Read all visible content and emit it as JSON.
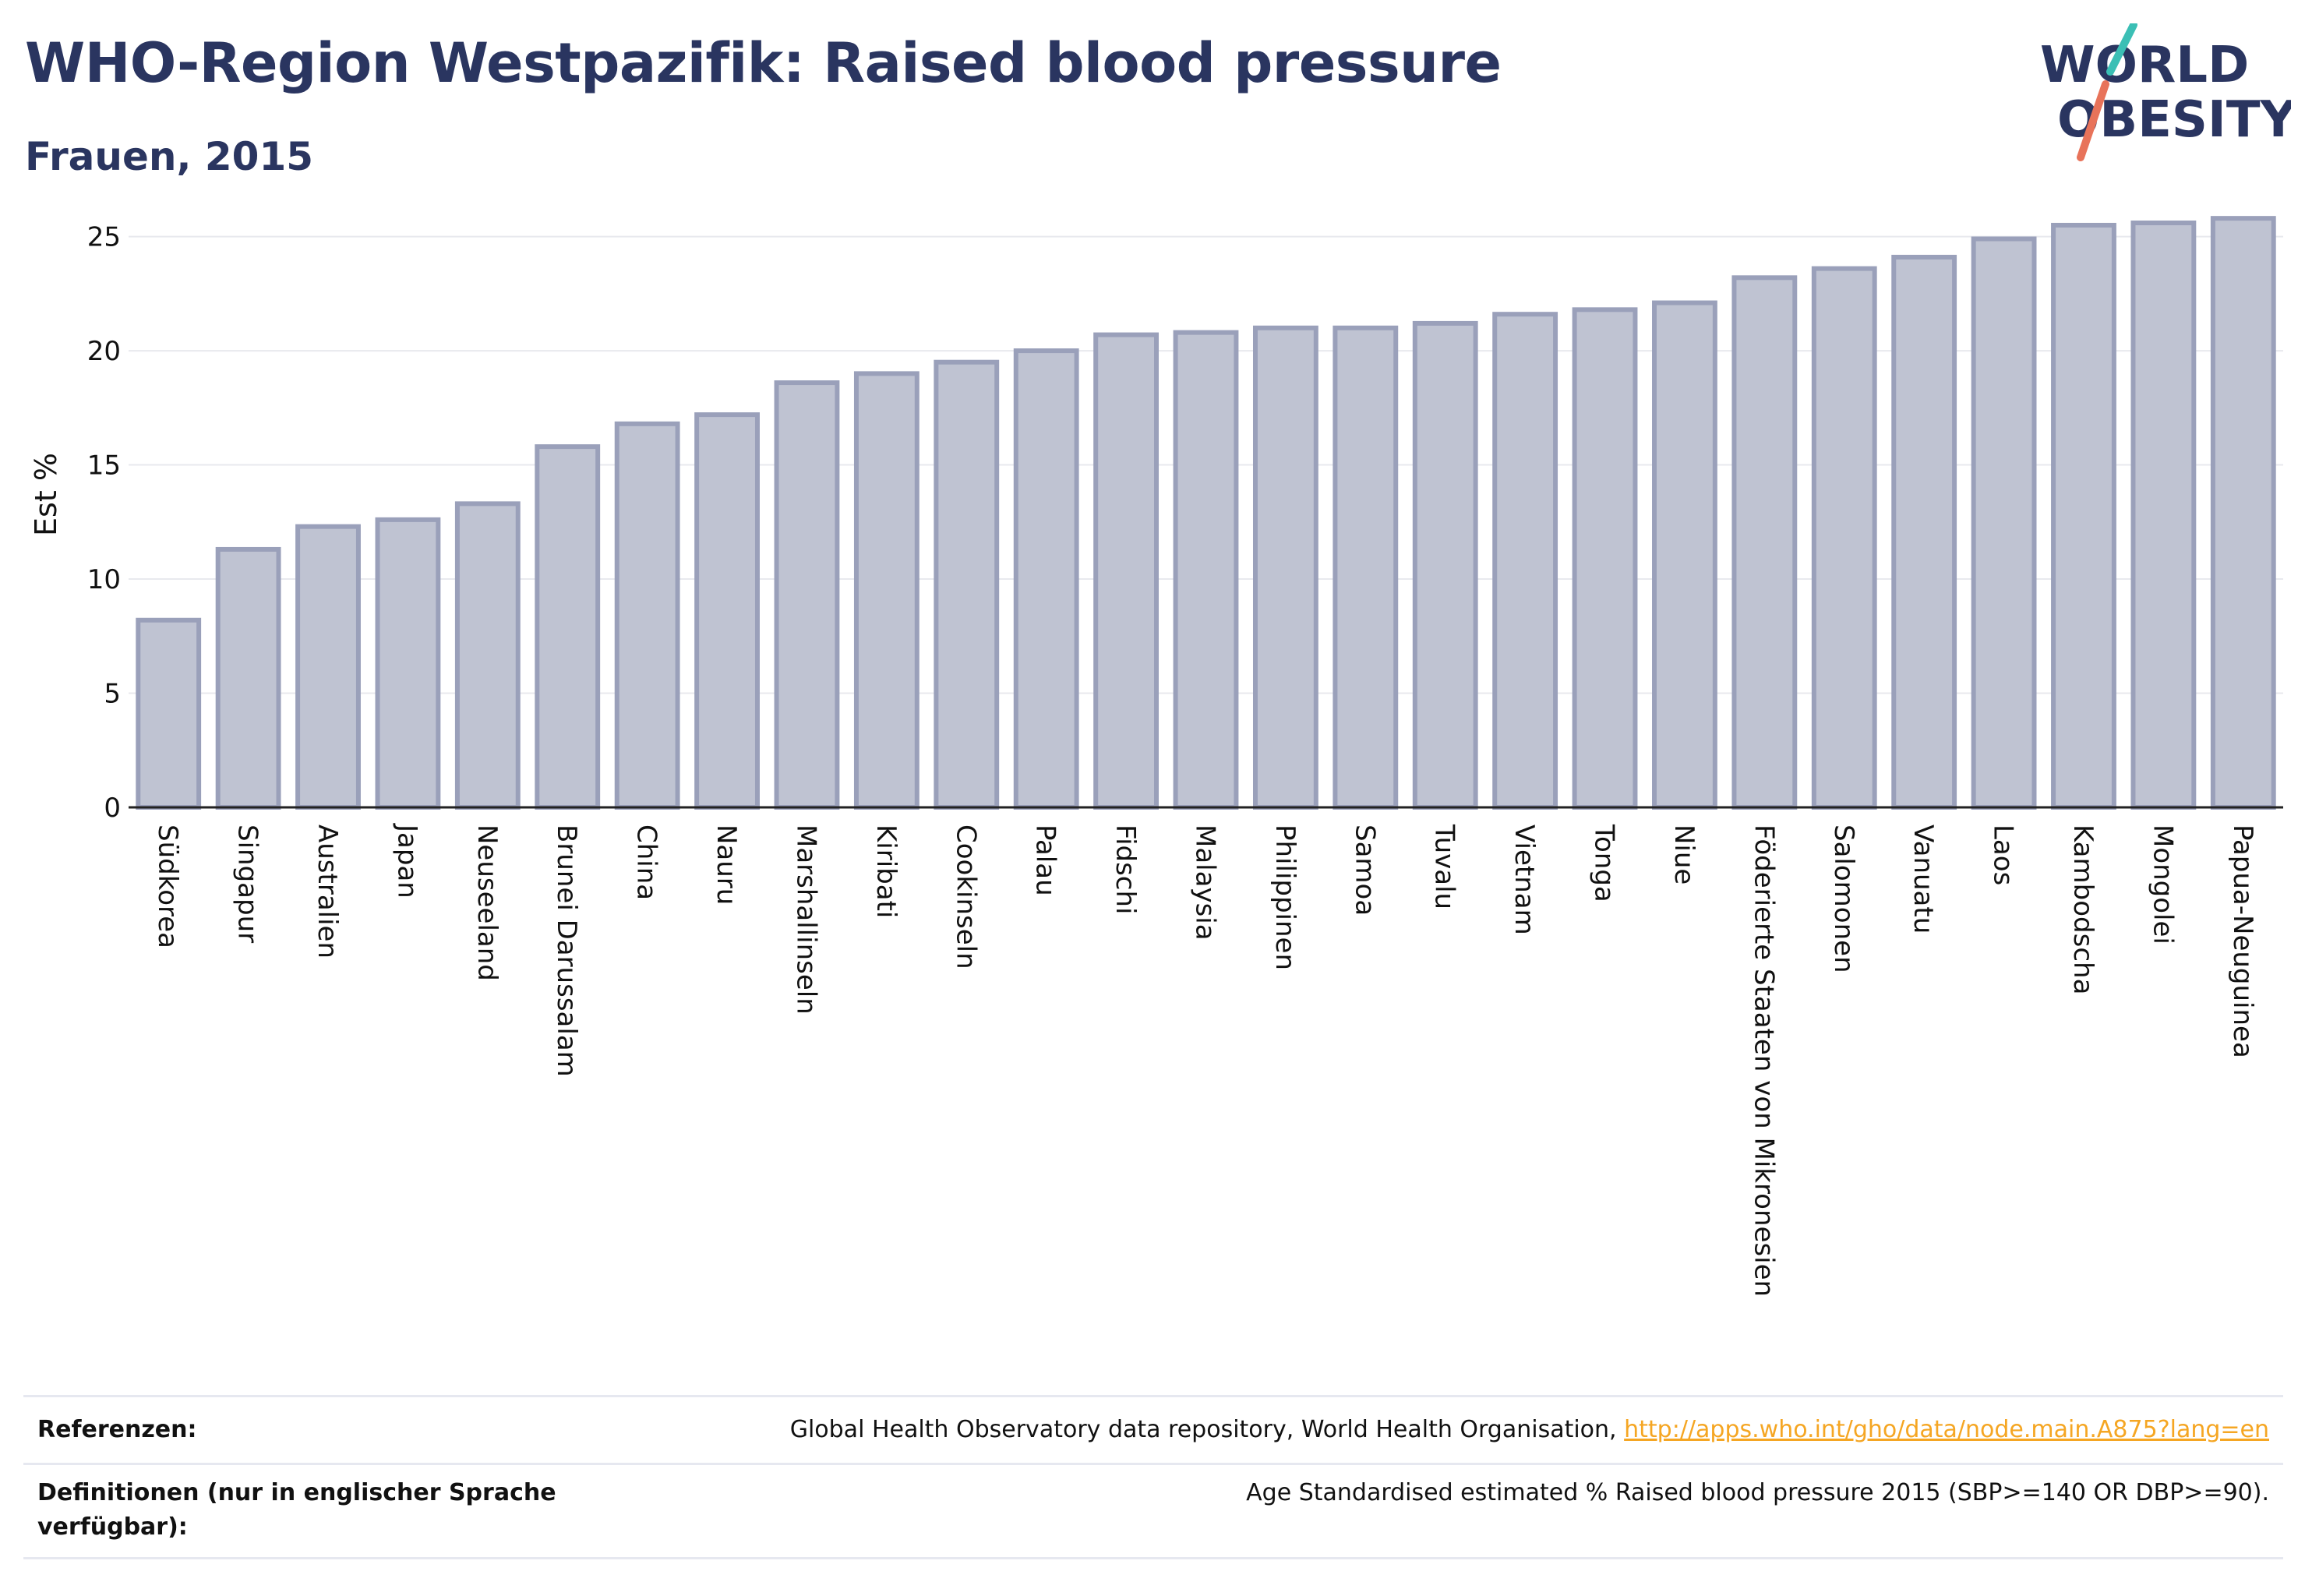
{
  "header": {
    "title": "WHO-Region Westpazifik: Raised blood pressure",
    "subtitle": "Frauen, 2015"
  },
  "logo": {
    "line1": "WORLD",
    "line2": "OBESITY",
    "accent_colors": [
      "#3bbfb5",
      "#e8735a"
    ]
  },
  "chart_data": {
    "type": "bar",
    "ylabel": "Est %",
    "ylim": [
      0,
      27
    ],
    "yticks": [
      0,
      5,
      10,
      15,
      20,
      25
    ],
    "grid": true,
    "bar_color": "#bfc3d2",
    "bar_edge_color": "#9aa0ba",
    "categories": [
      "Südkorea",
      "Singapur",
      "Australien",
      "Japan",
      "Neuseeland",
      "Brunei Darussalam",
      "China",
      "Nauru",
      "Marshallinseln",
      "Kiribati",
      "Cookinseln",
      "Palau",
      "Fidschi",
      "Malaysia",
      "Philippinen",
      "Samoa",
      "Tuvalu",
      "Vietnam",
      "Tonga",
      "Niue",
      "Föderierte Staaten von Mikronesien",
      "Salomonen",
      "Vanuatu",
      "Laos",
      "Kambodscha",
      "Mongolei",
      "Papua-Neuguinea"
    ],
    "values": [
      8.2,
      11.3,
      12.3,
      12.6,
      13.3,
      15.8,
      16.8,
      17.2,
      18.6,
      19.0,
      19.5,
      20.0,
      20.7,
      20.8,
      21.0,
      21.0,
      21.2,
      21.6,
      21.8,
      22.1,
      23.2,
      23.6,
      24.1,
      24.9,
      25.5,
      25.6,
      25.8
    ]
  },
  "footer": {
    "references_label": "Referenzen:",
    "references_text": "Global Health Observatory data repository, World Health Organisation,",
    "references_link": "http://apps.who.int/gho/data/node.main.A875?lang=en",
    "definitions_label": "Definitionen (nur in englischer Sprache verfügbar):",
    "definitions_text": "Age Standardised estimated % Raised blood pressure 2015 (SBP>=140 OR DBP>=90)."
  }
}
